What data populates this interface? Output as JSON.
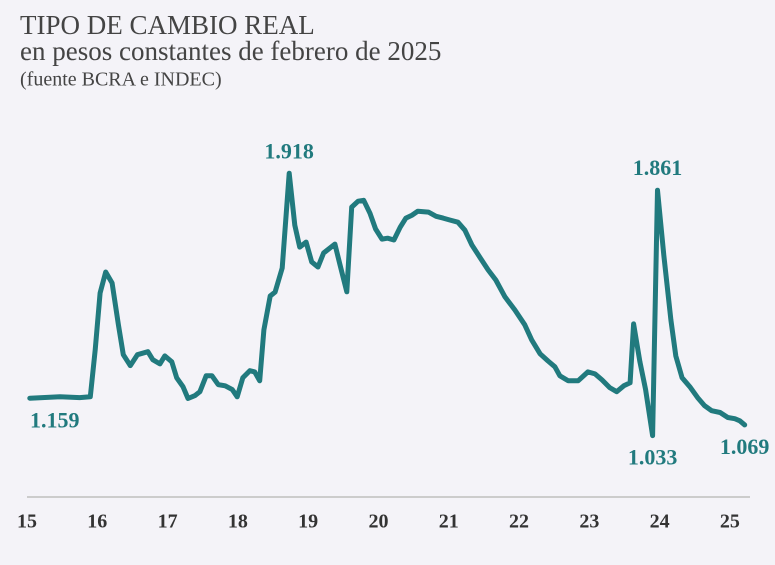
{
  "chart_data": {
    "type": "line",
    "title": "TIPO DE CAMBIO REAL",
    "subtitle": "en pesos constantes de febrero de 2025",
    "source": "(fuente BCRA e INDEC)",
    "color": "#217a7e",
    "x": [
      15.04,
      15.47,
      15.75,
      15.9,
      15.97,
      16.04,
      16.12,
      16.21,
      16.3,
      16.37,
      16.47,
      16.57,
      16.72,
      16.79,
      16.89,
      16.96,
      17.06,
      17.13,
      17.22,
      17.29,
      17.39,
      17.46,
      17.55,
      17.63,
      17.72,
      17.82,
      17.92,
      17.99,
      18.07,
      18.17,
      18.24,
      18.31,
      18.37,
      18.46,
      18.53,
      18.63,
      18.73,
      18.81,
      18.88,
      18.97,
      19.05,
      19.14,
      19.22,
      19.38,
      19.45,
      19.55,
      19.62,
      19.71,
      19.79,
      19.88,
      19.96,
      20.05,
      20.13,
      20.22,
      20.31,
      20.39,
      20.48,
      20.56,
      20.71,
      20.82,
      20.92,
      21.02,
      21.13,
      21.23,
      21.33,
      21.45,
      21.56,
      21.67,
      21.8,
      21.94,
      22.08,
      22.18,
      22.3,
      22.41,
      22.51,
      22.58,
      22.7,
      22.84,
      22.98,
      23.08,
      23.18,
      23.29,
      23.39,
      23.49,
      23.58,
      23.63,
      23.72,
      23.8,
      23.9,
      23.97,
      24.06,
      24.16,
      24.23,
      24.32,
      24.43,
      24.54,
      24.64,
      24.74,
      24.86,
      24.97,
      25.07,
      25.14,
      25.21
    ],
    "values": [
      1159,
      1164,
      1161,
      1164,
      1322,
      1514,
      1585,
      1548,
      1407,
      1306,
      1269,
      1306,
      1316,
      1289,
      1275,
      1302,
      1282,
      1228,
      1198,
      1158,
      1168,
      1181,
      1235,
      1235,
      1205,
      1201,
      1188,
      1164,
      1228,
      1252,
      1248,
      1218,
      1390,
      1504,
      1517,
      1598,
      1918,
      1743,
      1669,
      1686,
      1619,
      1602,
      1649,
      1679,
      1612,
      1518,
      1804,
      1824,
      1827,
      1783,
      1730,
      1696,
      1699,
      1693,
      1736,
      1767,
      1777,
      1790,
      1787,
      1773,
      1767,
      1760,
      1753,
      1726,
      1676,
      1632,
      1592,
      1558,
      1501,
      1457,
      1407,
      1356,
      1309,
      1285,
      1265,
      1235,
      1218,
      1218,
      1248,
      1241,
      1221,
      1195,
      1181,
      1201,
      1211,
      1410,
      1282,
      1188,
      1033,
      1861,
      1642,
      1423,
      1302,
      1228,
      1198,
      1161,
      1134,
      1117,
      1111,
      1094,
      1090,
      1083,
      1069
    ],
    "value_labels": [
      "1.159",
      null,
      null,
      null,
      null,
      null,
      null,
      null,
      null,
      null,
      null,
      null,
      null,
      null,
      null,
      null,
      null,
      null,
      null,
      null,
      null,
      null,
      null,
      null,
      null,
      null,
      null,
      null,
      null,
      null,
      null,
      null,
      null,
      null,
      null,
      null,
      "1.918",
      null,
      null,
      null,
      null,
      null,
      null,
      null,
      null,
      null,
      null,
      null,
      null,
      null,
      null,
      null,
      null,
      null,
      null,
      null,
      null,
      null,
      null,
      null,
      null,
      null,
      null,
      null,
      null,
      null,
      null,
      null,
      null,
      null,
      null,
      null,
      null,
      null,
      null,
      null,
      null,
      null,
      null,
      null,
      null,
      null,
      null,
      null,
      null,
      null,
      null,
      null,
      "1.033",
      "1.861",
      null,
      null,
      null,
      null,
      null,
      null,
      null,
      null,
      null,
      null,
      null,
      null,
      "1.069"
    ],
    "xlim": [
      15,
      25.3
    ],
    "xticks": [
      15,
      16,
      17,
      18,
      19,
      20,
      21,
      22,
      23,
      24,
      25
    ],
    "ylim": [
      900,
      2000
    ]
  }
}
